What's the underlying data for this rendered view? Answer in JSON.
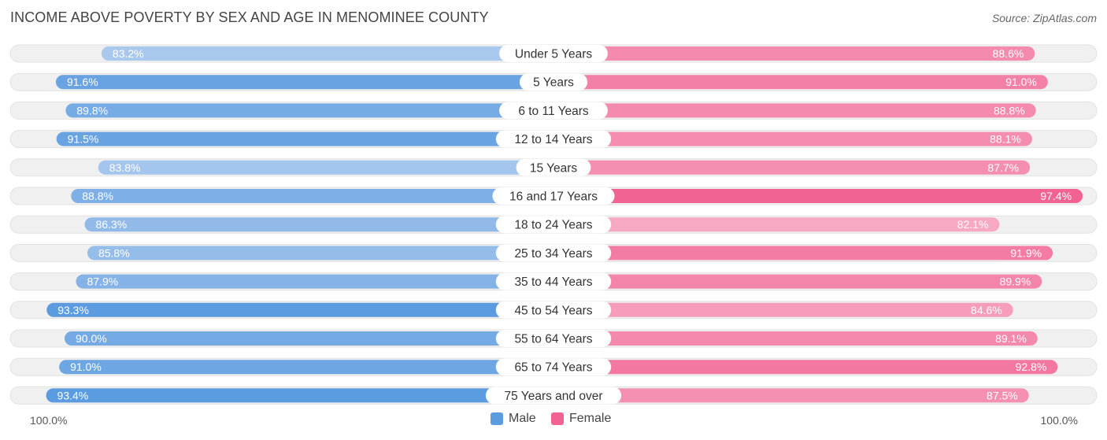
{
  "header": {
    "title": "INCOME ABOVE POVERTY BY SEX AND AGE IN MENOMINEE COUNTY",
    "source": "Source: ZipAtlas.com"
  },
  "legend": {
    "male_label": "Male",
    "female_label": "Female"
  },
  "axis": {
    "left_label": "100.0%",
    "right_label": "100.0%"
  },
  "colors": {
    "male_strong": "#5b9bdf",
    "male_light": "#a9c8ee",
    "female_strong": "#f06392",
    "female_light": "#f7a8c3",
    "track": "#f0f0f0"
  },
  "chart_data": {
    "type": "bar",
    "orientation": "horizontal-diverging",
    "title": "INCOME ABOVE POVERTY BY SEX AND AGE IN MENOMINEE COUNTY",
    "categories": [
      "Under 5 Years",
      "5 Years",
      "6 to 11 Years",
      "12 to 14 Years",
      "15 Years",
      "16 and 17 Years",
      "18 to 24 Years",
      "25 to 34 Years",
      "35 to 44 Years",
      "45 to 54 Years",
      "55 to 64 Years",
      "65 to 74 Years",
      "75 Years and over"
    ],
    "series": [
      {
        "name": "Male",
        "values": [
          83.2,
          91.6,
          89.8,
          91.5,
          83.8,
          88.8,
          86.3,
          85.8,
          87.9,
          93.3,
          90.0,
          91.0,
          93.4
        ],
        "labels": [
          "83.2%",
          "91.6%",
          "89.8%",
          "91.5%",
          "83.8%",
          "88.8%",
          "86.3%",
          "85.8%",
          "87.9%",
          "93.3%",
          "90.0%",
          "91.0%",
          "93.4%"
        ]
      },
      {
        "name": "Female",
        "values": [
          88.6,
          91.0,
          88.8,
          88.1,
          87.7,
          97.4,
          82.1,
          91.9,
          89.9,
          84.6,
          89.1,
          92.8,
          87.5
        ],
        "labels": [
          "88.6%",
          "91.0%",
          "88.8%",
          "88.1%",
          "87.7%",
          "97.4%",
          "82.1%",
          "91.9%",
          "89.9%",
          "84.6%",
          "89.1%",
          "92.8%",
          "87.5%"
        ]
      }
    ],
    "xlim": [
      0,
      100
    ],
    "legend_position": "bottom-center"
  }
}
